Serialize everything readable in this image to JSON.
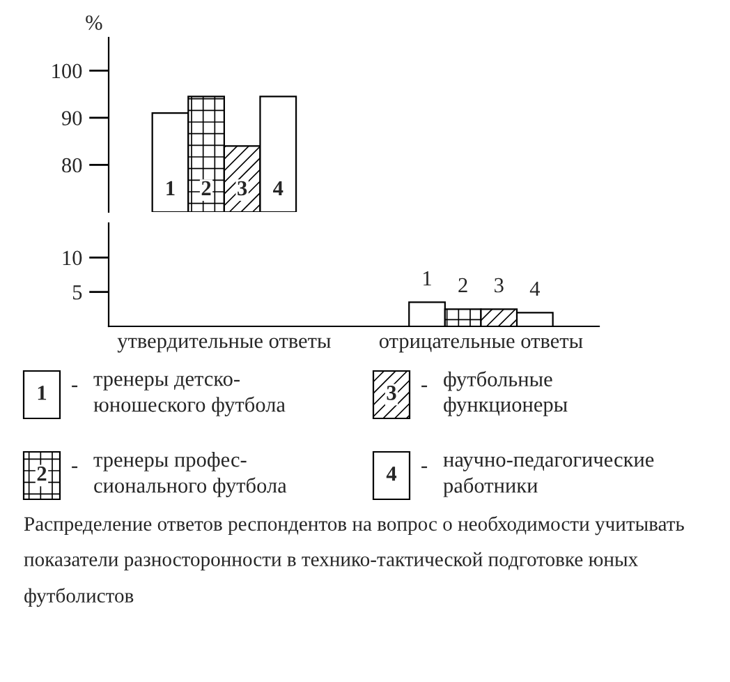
{
  "chart_data": [
    {
      "type": "bar",
      "ylabel": "%",
      "grid": false,
      "categories": [
        null
      ],
      "series": [
        {
          "name": "тренеры детско-\nюношеского футбола",
          "color": "#ffffff",
          "values": [
            91
          ]
        },
        {
          "name": "тренеры профес-\nсионального футбола",
          "color": "#000000",
          "values": [
            94.5
          ]
        },
        {
          "name": "футбольные\nфункционеры",
          "color": "#000000",
          "values": [
            84
          ]
        },
        {
          "name": "научно-педагогические\nработники",
          "color": "#ffffff",
          "values": [
            94.5
          ]
        }
      ],
      "ylim": [
        70,
        107
      ],
      "yticks": [
        80,
        90,
        100
      ],
      "tick_labels": "y",
      "legend": "bottom",
      "annotations": [
        "1",
        "2",
        "3",
        "4",
        "-",
        "-",
        "-",
        "-",
        "Распределение ответов респондентов на вопрос о необходимости учитывать показатели разносторонности в технико-тактической подготовке юных футболистов"
      ]
    },
    {
      "type": "bar",
      "grid": false,
      "categories": [
        "утвердительные ответы",
        "отрицательные ответы"
      ],
      "series": [
        {
          "color": "#ffffff",
          "values": [
            null,
            3.5
          ]
        },
        {
          "color": "#000000",
          "values": [
            null,
            2.5
          ]
        },
        {
          "color": "#000000",
          "values": [
            null,
            2.5
          ]
        },
        {
          "color": "#ffffff",
          "values": [
            null,
            2
          ]
        }
      ],
      "ylim": [
        0,
        15
      ],
      "yticks": [
        5,
        10
      ],
      "annotations": [
        "1",
        "2",
        "3",
        "4"
      ]
    }
  ]
}
